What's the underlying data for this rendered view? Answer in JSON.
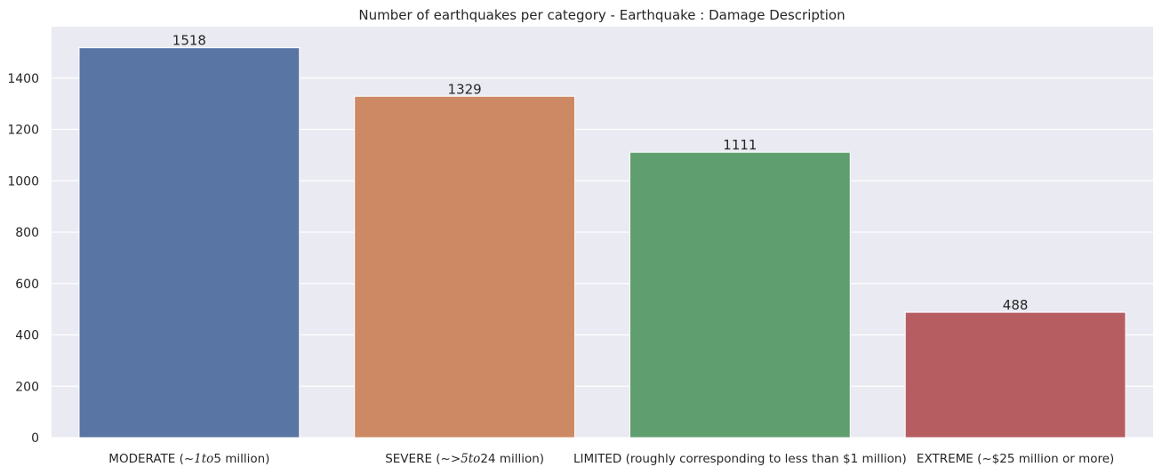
{
  "chart_data": {
    "type": "bar",
    "title": "Number of earthquakes per category - Earthquake : Damage Description",
    "xlabel": "",
    "ylabel": "",
    "ylim": [
      0,
      1600
    ],
    "yticks": [
      0,
      200,
      400,
      600,
      800,
      1000,
      1200,
      1400
    ],
    "grid": true,
    "categories": [
      "MODERATE (~$1 to $5 million)",
      "SEVERE (~>$5 to $24 million)",
      "LIMITED (roughly corresponding to less than $1 million)",
      "EXTREME (~$25 million or more)"
    ],
    "category_display": [
      [
        {
          "t": "MODERATE (~",
          "m": false
        },
        {
          "t": "1to",
          "m": true
        },
        {
          "t": "5 million)",
          "m": false
        }
      ],
      [
        {
          "t": "SEVERE (~>",
          "m": false
        },
        {
          "t": "5to",
          "m": true
        },
        {
          "t": "24 million)",
          "m": false
        }
      ],
      [
        {
          "t": "LIMITED (roughly corresponding to less than $1 million)",
          "m": false
        }
      ],
      [
        {
          "t": "EXTREME (~$25 million or more)",
          "m": false
        }
      ]
    ],
    "values": [
      1518,
      1329,
      1111,
      488
    ],
    "data_labels": [
      "1518",
      "1329",
      "1111",
      "488"
    ],
    "colors": [
      "#5875a4",
      "#cc8963",
      "#5f9e6e",
      "#b55d60"
    ],
    "background": "#eaeaf2",
    "grid_color": "#ffffff"
  }
}
